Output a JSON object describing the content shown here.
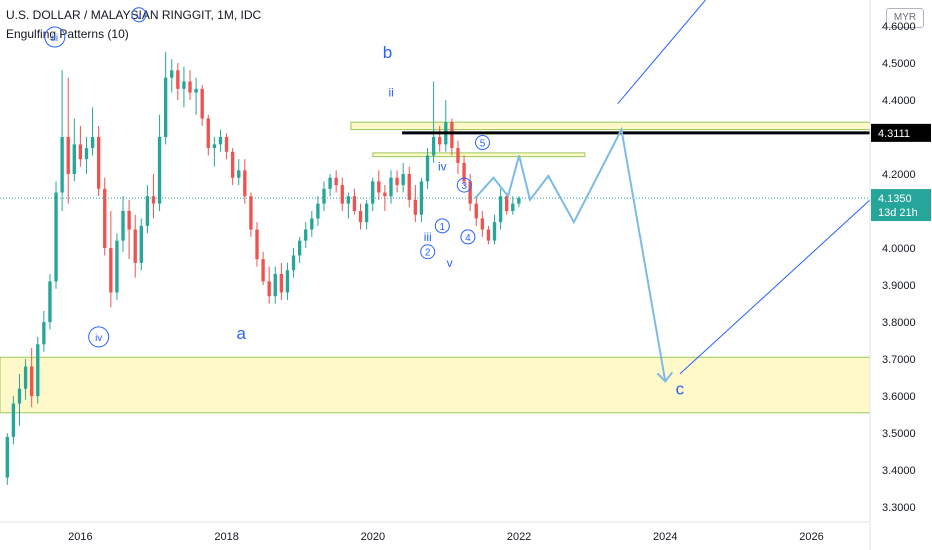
{
  "header": {
    "title": "U.S. DOLLAR / MALAYSIAN RINGGIT, 1M, IDC",
    "indicator": "Engulfing Patterns (10)",
    "currency": "MYR"
  },
  "colors": {
    "up": "#26a69a",
    "down": "#ef5350",
    "wave_label": "#2962ff",
    "projection": "#7cbbe6",
    "trend_line": "#2962ff",
    "zone_fill": "#fff9c4",
    "zone_border": "#8bc34a",
    "resistance": "#000000",
    "last_price_bg": "#26a69a",
    "axis_text": "#131722"
  },
  "price_tags": {
    "resistance": "4.3111",
    "last": "4.1350",
    "countdown": "13d 21h"
  },
  "wave_labels": [
    {
      "text": "iii",
      "circled": true
    },
    {
      "text": "v",
      "circled": true
    },
    {
      "text": "iv",
      "circled": true
    },
    {
      "text": "a",
      "circled": false
    },
    {
      "text": "b",
      "circled": false
    },
    {
      "text": "ii",
      "circled": false
    },
    {
      "text": "iv",
      "circled": false
    },
    {
      "text": "iii",
      "circled": false
    },
    {
      "text": "v",
      "circled": false
    },
    {
      "text": "1",
      "circled": true
    },
    {
      "text": "2",
      "circled": true
    },
    {
      "text": "3",
      "circled": true
    },
    {
      "text": "4",
      "circled": true
    },
    {
      "text": "5",
      "circled": true
    },
    {
      "text": "c",
      "circled": false
    }
  ],
  "chart_data": {
    "type": "candlestick",
    "title": "U.S. DOLLAR / MALAYSIAN RINGGIT, 1M, IDC",
    "x_ticks": [
      "2016",
      "2018",
      "2020",
      "2022",
      "2024",
      "2026"
    ],
    "y_ticks": [
      "3.3000",
      "3.4000",
      "3.5000",
      "3.6000",
      "3.7000",
      "3.8000",
      "3.9000",
      "4.0000",
      "4.1000",
      "4.2000",
      "4.3000",
      "4.4000",
      "4.5000",
      "4.6000"
    ],
    "ylim": [
      3.26,
      4.67
    ],
    "xlim": [
      2014.9,
      2026.8
    ],
    "candles": [
      [
        3.38,
        3.5,
        3.36,
        3.49
      ],
      [
        3.49,
        3.6,
        3.47,
        3.58
      ],
      [
        3.58,
        3.66,
        3.52,
        3.62
      ],
      [
        3.62,
        3.7,
        3.59,
        3.68
      ],
      [
        3.68,
        3.73,
        3.57,
        3.6
      ],
      [
        3.6,
        3.76,
        3.58,
        3.74
      ],
      [
        3.74,
        3.83,
        3.72,
        3.8
      ],
      [
        3.8,
        3.93,
        3.78,
        3.91
      ],
      [
        3.91,
        4.18,
        3.89,
        4.15
      ],
      [
        4.15,
        4.48,
        4.1,
        4.3
      ],
      [
        4.3,
        4.46,
        4.12,
        4.2
      ],
      [
        4.2,
        4.35,
        4.18,
        4.28
      ],
      [
        4.28,
        4.33,
        4.22,
        4.24
      ],
      [
        4.24,
        4.3,
        4.2,
        4.27
      ],
      [
        4.27,
        4.38,
        4.25,
        4.3
      ],
      [
        4.3,
        4.33,
        4.14,
        4.16
      ],
      [
        4.16,
        4.19,
        3.98,
        4.0
      ],
      [
        4.0,
        4.1,
        3.84,
        3.88
      ],
      [
        3.88,
        4.04,
        3.86,
        4.02
      ],
      [
        4.02,
        4.14,
        3.99,
        4.1
      ],
      [
        4.1,
        4.13,
        3.97,
        4.05
      ],
      [
        4.05,
        4.09,
        3.92,
        3.96
      ],
      [
        3.96,
        4.08,
        3.94,
        4.06
      ],
      [
        4.06,
        4.17,
        4.04,
        4.14
      ],
      [
        4.14,
        4.2,
        4.08,
        4.12
      ],
      [
        4.12,
        4.36,
        4.1,
        4.3
      ],
      [
        4.3,
        4.53,
        4.28,
        4.46
      ],
      [
        4.46,
        4.51,
        4.42,
        4.48
      ],
      [
        4.48,
        4.5,
        4.4,
        4.43
      ],
      [
        4.43,
        4.49,
        4.38,
        4.45
      ],
      [
        4.45,
        4.48,
        4.4,
        4.42
      ],
      [
        4.42,
        4.46,
        4.36,
        4.43
      ],
      [
        4.43,
        4.44,
        4.33,
        4.35
      ],
      [
        4.35,
        4.36,
        4.25,
        4.27
      ],
      [
        4.27,
        4.3,
        4.22,
        4.28
      ],
      [
        4.28,
        4.32,
        4.26,
        4.3
      ],
      [
        4.3,
        4.31,
        4.24,
        4.26
      ],
      [
        4.26,
        4.27,
        4.17,
        4.19
      ],
      [
        4.19,
        4.24,
        4.17,
        4.21
      ],
      [
        4.21,
        4.24,
        4.12,
        4.14
      ],
      [
        4.14,
        4.15,
        4.03,
        4.05
      ],
      [
        4.05,
        4.07,
        3.95,
        3.97
      ],
      [
        3.97,
        3.99,
        3.9,
        3.91
      ],
      [
        3.91,
        3.95,
        3.85,
        3.87
      ],
      [
        3.87,
        3.95,
        3.85,
        3.93
      ],
      [
        3.93,
        3.96,
        3.86,
        3.88
      ],
      [
        3.88,
        3.96,
        3.86,
        3.94
      ],
      [
        3.94,
        4.0,
        3.92,
        3.98
      ],
      [
        3.98,
        4.03,
        3.96,
        4.02
      ],
      [
        4.02,
        4.07,
        4.0,
        4.05
      ],
      [
        4.05,
        4.1,
        4.03,
        4.08
      ],
      [
        4.08,
        4.14,
        4.06,
        4.12
      ],
      [
        4.12,
        4.18,
        4.1,
        4.16
      ],
      [
        4.16,
        4.2,
        4.14,
        4.19
      ],
      [
        4.19,
        4.21,
        4.15,
        4.17
      ],
      [
        4.17,
        4.19,
        4.1,
        4.12
      ],
      [
        4.12,
        4.15,
        4.08,
        4.14
      ],
      [
        4.14,
        4.16,
        4.09,
        4.1
      ],
      [
        4.1,
        4.12,
        4.05,
        4.07
      ],
      [
        4.07,
        4.13,
        4.05,
        4.12
      ],
      [
        4.12,
        4.19,
        4.1,
        4.18
      ],
      [
        4.18,
        4.21,
        4.13,
        4.15
      ],
      [
        4.15,
        4.17,
        4.1,
        4.14
      ],
      [
        4.14,
        4.21,
        4.12,
        4.19
      ],
      [
        4.19,
        4.21,
        4.15,
        4.17
      ],
      [
        4.17,
        4.23,
        4.15,
        4.2
      ],
      [
        4.2,
        4.22,
        4.11,
        4.13
      ],
      [
        4.13,
        4.17,
        4.07,
        4.09
      ],
      [
        4.09,
        4.19,
        4.07,
        4.18
      ],
      [
        4.18,
        4.27,
        4.16,
        4.25
      ],
      [
        4.25,
        4.45,
        4.23,
        4.3
      ],
      [
        4.3,
        4.33,
        4.26,
        4.28
      ],
      [
        4.28,
        4.4,
        4.26,
        4.34
      ],
      [
        4.34,
        4.35,
        4.25,
        4.27
      ],
      [
        4.27,
        4.29,
        4.2,
        4.23
      ],
      [
        4.23,
        4.25,
        4.17,
        4.18
      ],
      [
        4.18,
        4.2,
        4.1,
        4.12
      ],
      [
        4.12,
        4.14,
        4.06,
        4.08
      ],
      [
        4.08,
        4.1,
        4.03,
        4.05
      ],
      [
        4.05,
        4.06,
        4.01,
        4.02
      ],
      [
        4.02,
        4.09,
        4.01,
        4.07
      ],
      [
        4.07,
        4.16,
        4.05,
        4.14
      ],
      [
        4.14,
        4.15,
        4.09,
        4.1
      ],
      [
        4.1,
        4.14,
        4.09,
        4.12
      ],
      [
        4.12,
        4.14,
        4.11,
        4.135
      ]
    ],
    "candle_start": 2015.0,
    "candle_step": 0.0833,
    "zones": [
      {
        "x0": 2014.9,
        "x1": 2026.8,
        "y0": 3.555,
        "y1": 3.705
      },
      {
        "x0": 2019.7,
        "x1": 2026.8,
        "y0": 4.32,
        "y1": 4.34
      },
      {
        "x0": 2020.0,
        "x1": 2022.9,
        "y0": 4.247,
        "y1": 4.257
      }
    ],
    "resistance_line": {
      "x0": 2020.4,
      "x1": 2026.8,
      "y": 4.3111
    },
    "last_price_line": {
      "y": 4.135
    },
    "projection_path": [
      [
        2021.4,
        4.135
      ],
      [
        2021.65,
        4.19
      ],
      [
        2021.85,
        4.14
      ],
      [
        2022.0,
        4.25
      ],
      [
        2022.15,
        4.13
      ],
      [
        2022.4,
        4.195
      ],
      [
        2022.75,
        4.07
      ],
      [
        2023.4,
        4.32
      ],
      [
        2024.0,
        3.64
      ]
    ],
    "trend_lines": [
      [
        [
          2023.35,
          4.39
        ],
        [
          2024.55,
          4.67
        ]
      ],
      [
        [
          2024.2,
          3.66
        ],
        [
          2026.8,
          4.13
        ]
      ]
    ],
    "label_points": [
      [
        2015.65,
        4.57
      ],
      [
        2016.8,
        4.63
      ],
      [
        2016.25,
        3.76
      ],
      [
        2018.2,
        3.77
      ],
      [
        2020.2,
        4.53
      ],
      [
        2020.25,
        4.42
      ],
      [
        2020.95,
        4.22
      ],
      [
        2020.75,
        4.03
      ],
      [
        2021.05,
        3.96
      ],
      [
        2021.05,
        4.06
      ],
      [
        2021.1,
        3.99
      ],
      [
        2021.25,
        4.17
      ],
      [
        2021.35,
        4.03
      ],
      [
        2021.5,
        4.285
      ],
      [
        2024.2,
        3.62
      ]
    ],
    "label_overrides": [
      [
        9,
        2020.95,
        4.06
      ],
      [
        10,
        2020.75,
        3.99
      ],
      [
        11,
        2021.25,
        4.17
      ],
      [
        12,
        2021.3,
        4.03
      ],
      [
        13,
        2021.5,
        4.285
      ]
    ]
  }
}
